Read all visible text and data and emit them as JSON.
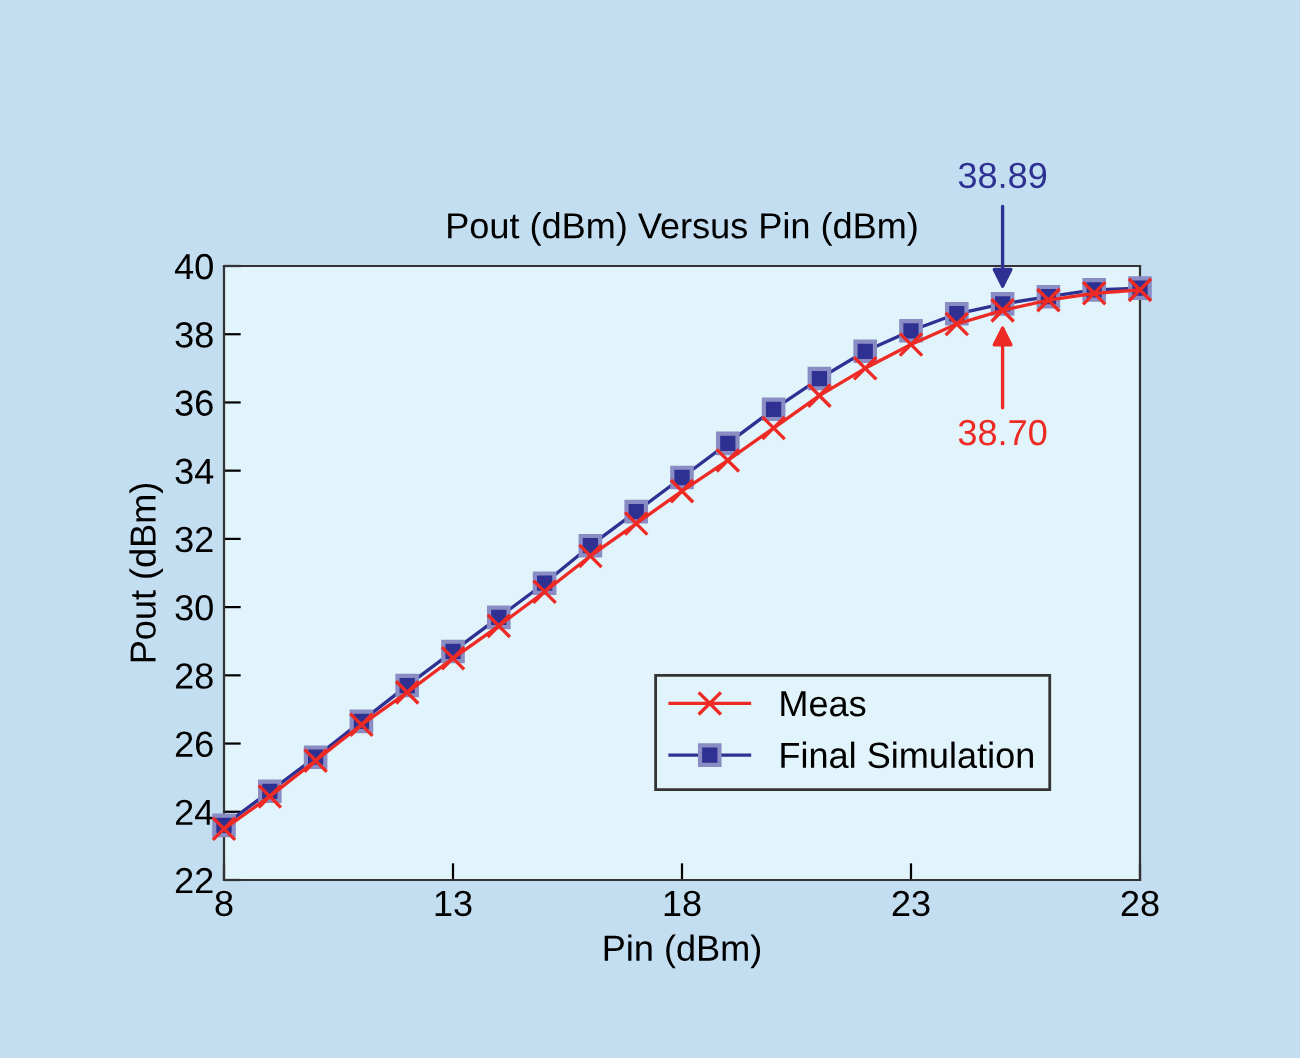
{
  "chart_data": {
    "type": "line",
    "title": "Pout (dBm) Versus Pin (dBm)",
    "xlabel": "Pin (dBm)",
    "ylabel": "Pout (dBm)",
    "x": [
      8,
      9,
      10,
      11,
      12,
      13,
      14,
      15,
      16,
      17,
      18,
      19,
      20,
      21,
      22,
      23,
      24,
      25,
      26,
      27,
      28
    ],
    "series": [
      {
        "name": "Meas",
        "color": "#ee2a24",
        "marker": "cross",
        "values": [
          23.5,
          24.45,
          25.5,
          26.55,
          27.5,
          28.5,
          29.45,
          30.45,
          31.5,
          32.45,
          33.4,
          34.3,
          35.25,
          36.2,
          37.0,
          37.7,
          38.3,
          38.7,
          39.0,
          39.2,
          39.3
        ]
      },
      {
        "name": "Final Simulation",
        "color": "#2e3192",
        "marker": "square",
        "values": [
          23.6,
          24.6,
          25.6,
          26.65,
          27.7,
          28.7,
          29.7,
          30.7,
          31.8,
          32.8,
          33.8,
          34.8,
          35.8,
          36.7,
          37.5,
          38.1,
          38.6,
          38.89,
          39.1,
          39.3,
          39.35
        ]
      }
    ],
    "annotations": [
      {
        "text": "38.89",
        "x": 25,
        "y": 38.89
      },
      {
        "text": "38.70",
        "x": 25,
        "y": 38.7
      }
    ],
    "xlim": [
      8,
      28
    ],
    "xticks": [
      8,
      13,
      18,
      23,
      28
    ],
    "ylim": [
      22,
      40
    ],
    "yticks": [
      22,
      24,
      26,
      28,
      30,
      32,
      34,
      36,
      38,
      40
    ],
    "grid": false,
    "legend": "bottom right",
    "line_style": "solid"
  }
}
